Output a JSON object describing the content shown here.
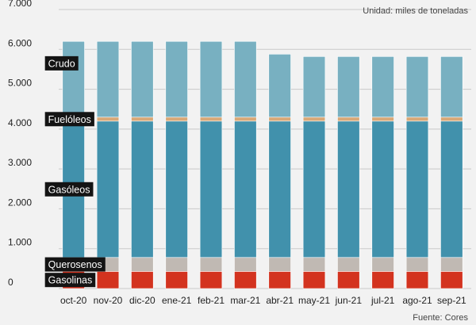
{
  "chart_data": {
    "type": "bar",
    "stacked": true,
    "unit_note": "Unidad: miles de toneladas",
    "source": "Fuente: Cores",
    "categories": [
      "oct-20",
      "nov-20",
      "dic-20",
      "ene-21",
      "feb-21",
      "mar-21",
      "abr-21",
      "may-21",
      "jun-21",
      "jul-21",
      "ago-21",
      "sep-21"
    ],
    "y_ticks": [
      "0",
      "1.000",
      "2.000",
      "3.000",
      "4.000",
      "5.000",
      "6.000",
      "7.000"
    ],
    "ylim": [
      0,
      7000
    ],
    "grid": true,
    "series": [
      {
        "name": "Gasolinas",
        "color": "#d3331f",
        "values": [
          430,
          430,
          430,
          430,
          430,
          430,
          430,
          430,
          430,
          430,
          430,
          430
        ]
      },
      {
        "name": "Querosenos",
        "color": "#c0b9b3",
        "values": [
          350,
          350,
          350,
          350,
          350,
          350,
          350,
          350,
          350,
          350,
          350,
          350
        ]
      },
      {
        "name": "Gasóleos",
        "color": "#4191ac",
        "values": [
          3420,
          3420,
          3420,
          3420,
          3420,
          3420,
          3420,
          3420,
          3420,
          3420,
          3420,
          3420
        ]
      },
      {
        "name": "Fuelóleos",
        "color": "#d9a877",
        "values": [
          100,
          100,
          100,
          100,
          100,
          100,
          100,
          100,
          100,
          100,
          100,
          100
        ]
      },
      {
        "name": "Crudo",
        "color": "#78b0c1",
        "values": [
          1900,
          1900,
          1900,
          1900,
          1900,
          1900,
          1580,
          1520,
          1520,
          1520,
          1520,
          1520
        ]
      }
    ],
    "series_labels": [
      "Crudo",
      "Fuelóleos",
      "Gasóleos",
      "Querosenos",
      "Gasolinas"
    ]
  }
}
